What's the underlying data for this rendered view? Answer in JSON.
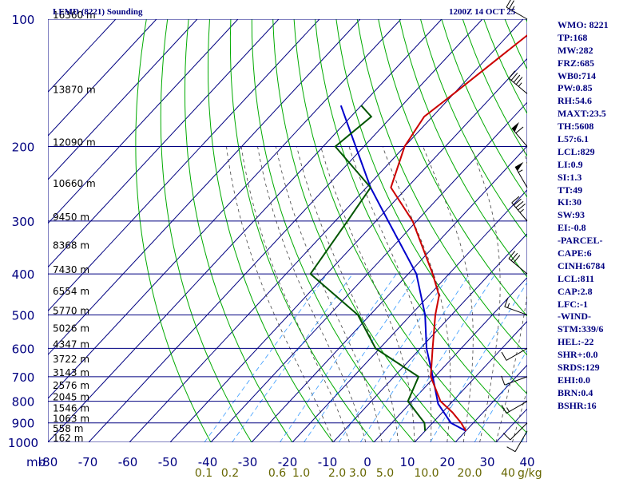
{
  "chart_data": {
    "type": "skew-t",
    "title": "LEMD (8221) Sounding",
    "time_label": "1200Z 14 OCT 25",
    "pressure_unit": "mb",
    "mixing_ratio_unit": "g/kg",
    "pressure_levels": [
      100,
      200,
      300,
      400,
      500,
      600,
      700,
      800,
      900,
      1000
    ],
    "pressure_labels": [
      "100",
      "200",
      "300",
      "400",
      "500",
      "600",
      "700",
      "800",
      "900",
      "1000"
    ],
    "temperature_ticks": [
      -80,
      -70,
      -60,
      -50,
      -40,
      -30,
      -20,
      -10,
      0,
      10,
      20,
      30,
      40
    ],
    "temperature_tick_labels": [
      "-80",
      "-70",
      "-60",
      "-50",
      "-40",
      "-30",
      "-20",
      "-10",
      "0",
      "10",
      "20",
      "30",
      "40"
    ],
    "mixing_ratio_labels": [
      "0.1",
      "0.2",
      "0.6",
      "1.0",
      "2.0",
      "3.0",
      "5.0",
      "10.0",
      "20.0",
      "40"
    ],
    "height_labels": [
      "16360 m",
      "13870 m",
      "12090 m",
      "10660 m",
      "9450 m",
      "8368 m",
      "7430 m",
      "6554 m",
      "5770 m",
      "5026 m",
      "4347 m",
      "3722 m",
      "3143 m",
      "2576 m",
      "2045 m",
      "1546 m",
      "1063 m",
      "558 m",
      "162 m"
    ],
    "temperature_profile": [
      {
        "p": 940,
        "t": 20
      },
      {
        "p": 900,
        "t": 17
      },
      {
        "p": 850,
        "t": 12.5
      },
      {
        "p": 800,
        "t": 7
      },
      {
        "p": 700,
        "t": -1
      },
      {
        "p": 600,
        "t": -7
      },
      {
        "p": 500,
        "t": -14
      },
      {
        "p": 450,
        "t": -17.5
      },
      {
        "p": 400,
        "t": -24
      },
      {
        "p": 300,
        "t": -41
      },
      {
        "p": 250,
        "t": -54
      },
      {
        "p": 200,
        "t": -60
      },
      {
        "p": 170,
        "t": -62
      },
      {
        "p": 150,
        "t": -60
      },
      {
        "p": 100,
        "t": -54
      }
    ],
    "dewpoint_profile": [
      {
        "p": 940,
        "t": 10
      },
      {
        "p": 900,
        "t": 8
      },
      {
        "p": 800,
        "t": -1
      },
      {
        "p": 700,
        "t": -4
      },
      {
        "p": 600,
        "t": -21
      },
      {
        "p": 500,
        "t": -33
      },
      {
        "p": 400,
        "t": -54
      },
      {
        "p": 300,
        "t": -57
      },
      {
        "p": 250,
        "t": -59
      },
      {
        "p": 200,
        "t": -77
      },
      {
        "p": 170,
        "t": -75
      },
      {
        "p": 160,
        "t": -80
      }
    ],
    "parcel_profile": [
      {
        "p": 940,
        "t": 20
      },
      {
        "p": 900,
        "t": 14.5
      },
      {
        "p": 811,
        "t": 7
      },
      {
        "p": 700,
        "t": -0.5
      },
      {
        "p": 600,
        "t": -8.5
      },
      {
        "p": 500,
        "t": -16.5
      },
      {
        "p": 400,
        "t": -28
      },
      {
        "p": 300,
        "t": -47
      },
      {
        "p": 250,
        "t": -59
      },
      {
        "p": 200,
        "t": -72
      },
      {
        "p": 160,
        "t": -85
      }
    ],
    "wind_barbs": [
      {
        "p": 940,
        "dir": 210,
        "spd": 10
      },
      {
        "p": 900,
        "dir": 225,
        "spd": 10
      },
      {
        "p": 800,
        "dir": 240,
        "spd": 15
      },
      {
        "p": 700,
        "dir": 250,
        "spd": 10
      },
      {
        "p": 600,
        "dir": 240,
        "spd": 10
      },
      {
        "p": 500,
        "dir": 290,
        "spd": 15
      },
      {
        "p": 400,
        "dir": 310,
        "spd": 30
      },
      {
        "p": 300,
        "dir": 320,
        "spd": 45
      },
      {
        "p": 250,
        "dir": 330,
        "spd": 55
      },
      {
        "p": 200,
        "dir": 320,
        "spd": 60
      },
      {
        "p": 150,
        "dir": 310,
        "spd": 45
      },
      {
        "p": 100,
        "dir": 300,
        "spd": 25
      }
    ],
    "colors": {
      "temperature": "#cc0000",
      "dewpoint": "#005500",
      "parcel": "#0000cc",
      "isobars": "#000080",
      "isotherms": "#000080",
      "dry_adiabats": "#00aa00",
      "moist_adiabats": "#444444",
      "mixing_ratio": "#3399ff",
      "height_labels": "#000000",
      "axis_labels": "#000080",
      "mixing_labels": "#666600"
    }
  },
  "indices": [
    "WMO: 8221",
    "TP:168",
    "MW:282",
    "FRZ:685",
    "WB0:714",
    "PW:0.85",
    "RH:54.6",
    "MAXT:23.5",
    "TH:5608",
    "L57:6.1",
    "LCL:829",
    "LI:0.9",
    "SI:1.3",
    "TT:49",
    "KI:30",
    "SW:93",
    "EI:-0.8",
    "-PARCEL-",
    "CAPE:6",
    "CINH:6784",
    "LCL:811",
    "CAP:2.8",
    "LFC:-1",
    "-WIND-",
    "STM:339/6",
    "HEL:-22",
    "SHR+:0.0",
    "SRDS:129",
    "EHI:0.0",
    "BRN:0.4",
    "BSHR:16"
  ]
}
